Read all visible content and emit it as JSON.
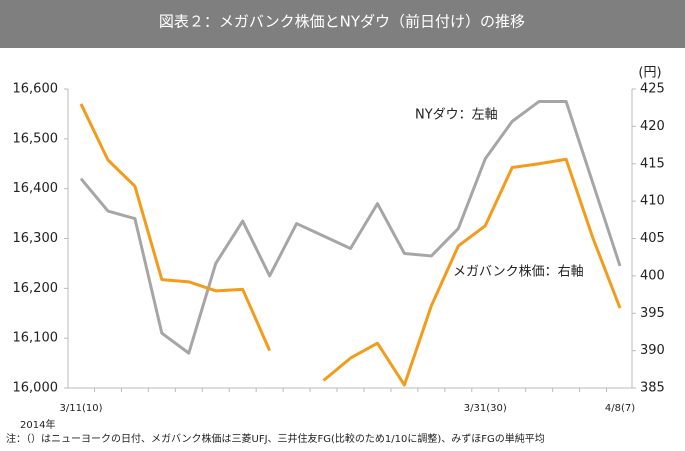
{
  "chart_data": {
    "type": "line",
    "title": "図表２：メガバンク株価とNYダウ（前日付け）の推移",
    "categories": [
      "3/11(10)",
      null,
      null,
      null,
      null,
      null,
      null,
      null,
      null,
      null,
      null,
      null,
      null,
      null,
      null,
      "3/31(30)",
      null,
      null,
      null,
      null,
      "4/8(7)"
    ],
    "x_sublabel": "2014年",
    "y2_label": "(円)",
    "note": "注：（）はニューヨークの日付、メガバンク株価は三菱UFJ、三井住友FG(比較のため1/10に調整)、みずほFGの単純平均",
    "ylim": [
      16000,
      16600
    ],
    "yticks": [
      {
        "value": 16000,
        "label": "16,000"
      },
      {
        "value": 16100,
        "label": "16,100"
      },
      {
        "value": 16200,
        "label": "16,200"
      },
      {
        "value": 16300,
        "label": "16,300"
      },
      {
        "value": 16400,
        "label": "16,400"
      },
      {
        "value": 16500,
        "label": "16,500"
      },
      {
        "value": 16600,
        "label": "16,600"
      }
    ],
    "y2lim": [
      385,
      425
    ],
    "y2ticks": [
      385,
      390,
      395,
      400,
      405,
      410,
      415,
      420,
      425
    ],
    "series": [
      {
        "name": "NYダウ：左軸",
        "color": "#a6a6a6",
        "axis": "y",
        "values": [
          16420,
          16355,
          16340,
          16110,
          16070,
          16250,
          16335,
          16225,
          16330,
          16305,
          16280,
          16370,
          16270,
          16265,
          16320,
          16460,
          16535,
          16575,
          16575,
          16410,
          16245
        ]
      },
      {
        "name": "メガバンク株価：右軸",
        "color": "#f39c1b",
        "axis": "y2",
        "values": [
          423,
          415.5,
          412,
          399.5,
          399.2,
          398,
          398.2,
          390,
          null,
          386,
          389,
          391,
          385.4,
          396,
          404,
          406.7,
          414.5,
          415,
          415.6,
          405,
          395.7
        ]
      }
    ]
  }
}
